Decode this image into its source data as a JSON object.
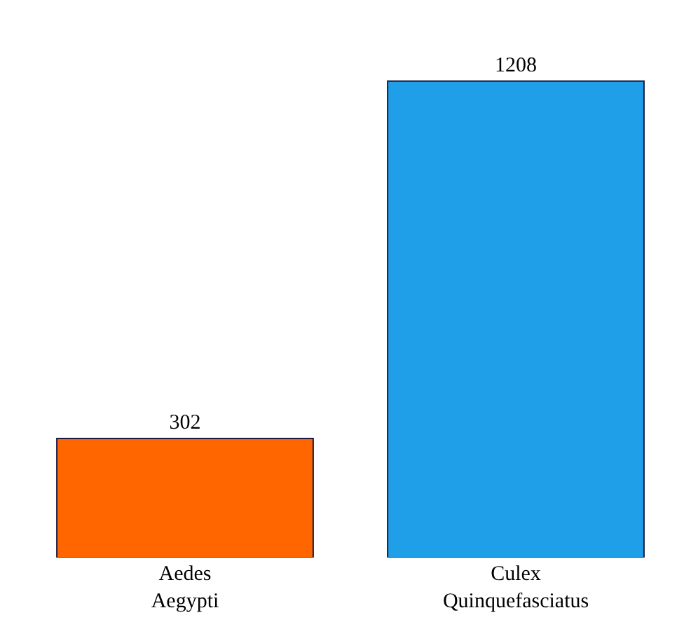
{
  "chart_data": {
    "type": "bar",
    "categories": [
      "Aedes Aegypti",
      "Culex Quinquefasciatus"
    ],
    "values": [
      302,
      1208
    ],
    "colors": [
      "#ff6600",
      "#1e9fe8"
    ],
    "data_labels": true
  }
}
